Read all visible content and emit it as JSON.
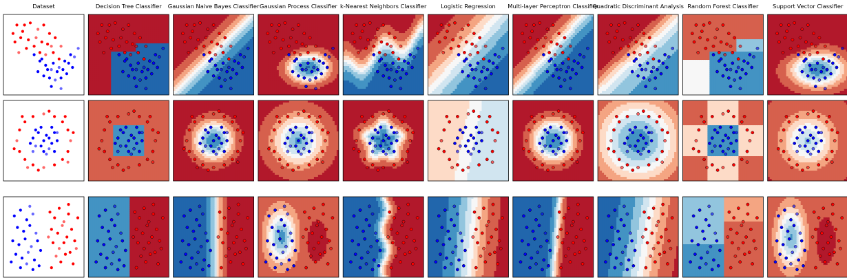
{
  "figure": {
    "columns": [
      "Dataset",
      "Decision Tree Classifier",
      "Gaussian Naive Bayes Classifier",
      "Gaussian Process Classifier",
      "k-Nearest Neighbors Classifier",
      "Logistic Regression",
      "Multi-layer Perceptron Classifier",
      "Quadratic Discriminant Analysis",
      "Random Forest Classifier",
      "Support Vector Classifier"
    ],
    "rows": [
      "moons",
      "circles",
      "linearly separable"
    ],
    "colors": {
      "class_0": "#ff0000",
      "class_1": "#0000ff",
      "map_red_dark": "#b2182b",
      "map_red": "#d6604d",
      "map_red_light": "#f4a582",
      "map_red_pale": "#fddbc7",
      "map_white": "#f7f7f7",
      "map_blue_pale": "#d1e5f0",
      "map_blue_light": "#92c5de",
      "map_blue": "#4393c3",
      "map_blue_dark": "#2166ac"
    }
  },
  "chart_data": {
    "type": "scatter",
    "description_source": "classifier comparison grid: 3 datasets x 9 classifiers, points coloured by class over decision-function background",
    "datasets": [
      {
        "name": "moons",
        "points": [
          [
            -0.9,
            1.9,
            0
          ],
          [
            -0.6,
            1.6,
            0
          ],
          [
            -0.2,
            2.0,
            0
          ],
          [
            0.2,
            1.7,
            0
          ],
          [
            0.5,
            1.9,
            0
          ],
          [
            0.8,
            1.5,
            0
          ],
          [
            1.1,
            1.3,
            0
          ],
          [
            1.4,
            0.9,
            0
          ],
          [
            -1.0,
            1.1,
            0
          ],
          [
            -0.7,
            1.3,
            0
          ],
          [
            -0.3,
            1.2,
            0
          ],
          [
            0.1,
            1.3,
            0
          ],
          [
            0.4,
            1.1,
            0
          ],
          [
            0.7,
            1.0,
            0
          ],
          [
            1.0,
            0.6,
            0
          ],
          [
            -0.8,
            0.6,
            0
          ],
          [
            -0.4,
            0.8,
            0
          ],
          [
            0.0,
            0.9,
            0
          ],
          [
            0.3,
            0.6,
            0
          ],
          [
            0.6,
            0.5,
            0
          ],
          [
            1.3,
            0.3,
            0
          ],
          [
            -1.1,
            1.5,
            0
          ],
          [
            -0.5,
            1.9,
            0
          ],
          [
            0.9,
            0.9,
            0
          ],
          [
            0.0,
            0.5,
            1
          ],
          [
            0.3,
            0.2,
            1
          ],
          [
            0.6,
            0.0,
            1
          ],
          [
            0.9,
            -0.2,
            1
          ],
          [
            1.2,
            -0.3,
            1
          ],
          [
            1.5,
            -0.2,
            1
          ],
          [
            1.8,
            0.1,
            1
          ],
          [
            2.1,
            0.4,
            1
          ],
          [
            0.2,
            -0.3,
            1
          ],
          [
            0.5,
            -0.5,
            1
          ],
          [
            0.8,
            -0.6,
            1
          ],
          [
            1.1,
            -0.7,
            1
          ],
          [
            1.4,
            -0.6,
            1
          ],
          [
            1.7,
            -0.4,
            1
          ],
          [
            2.0,
            -0.1,
            1
          ],
          [
            2.3,
            0.8,
            1
          ],
          [
            0.4,
            0.3,
            1
          ],
          [
            0.7,
            -0.2,
            1
          ],
          [
            1.0,
            0.1,
            1
          ],
          [
            1.3,
            -0.1,
            1
          ],
          [
            1.6,
            0.2,
            1
          ],
          [
            1.9,
            0.5,
            1
          ],
          [
            0.9,
            -1.0,
            1
          ],
          [
            1.4,
            -1.1,
            1
          ]
        ]
      },
      {
        "name": "circles",
        "points": [
          [
            -0.9,
            0.4,
            0
          ],
          [
            -0.7,
            0.7,
            0
          ],
          [
            -0.4,
            0.9,
            0
          ],
          [
            0.0,
            1.0,
            0
          ],
          [
            0.4,
            0.9,
            0
          ],
          [
            0.7,
            0.7,
            0
          ],
          [
            0.9,
            0.4,
            0
          ],
          [
            1.0,
            0.0,
            0
          ],
          [
            0.9,
            -0.4,
            0
          ],
          [
            0.7,
            -0.7,
            0
          ],
          [
            0.4,
            -0.9,
            0
          ],
          [
            0.0,
            -1.0,
            0
          ],
          [
            -0.4,
            -0.9,
            0
          ],
          [
            -0.7,
            -0.7,
            0
          ],
          [
            -0.9,
            -0.4,
            0
          ],
          [
            -1.0,
            0.0,
            0
          ],
          [
            -0.8,
            0.9,
            0
          ],
          [
            0.8,
            0.9,
            0
          ],
          [
            1.1,
            0.3,
            0
          ],
          [
            0.9,
            -0.8,
            0
          ],
          [
            -0.2,
            -1.1,
            0
          ],
          [
            -1.1,
            -0.3,
            0
          ],
          [
            0.2,
            1.1,
            0
          ],
          [
            -0.6,
            -1.0,
            0
          ],
          [
            0.1,
            0.2,
            1
          ],
          [
            -0.2,
            0.3,
            1
          ],
          [
            0.3,
            -0.1,
            1
          ],
          [
            -0.3,
            -0.2,
            1
          ],
          [
            0.0,
            -0.4,
            1
          ],
          [
            0.4,
            0.3,
            1
          ],
          [
            -0.4,
            0.1,
            1
          ],
          [
            0.2,
            -0.3,
            1
          ],
          [
            -0.1,
            0.5,
            1
          ],
          [
            0.5,
            0.0,
            1
          ],
          [
            -0.5,
            -0.1,
            1
          ],
          [
            0.1,
            -0.5,
            1
          ],
          [
            0.3,
            0.5,
            1
          ],
          [
            -0.3,
            0.4,
            1
          ],
          [
            0.4,
            -0.4,
            1
          ],
          [
            -0.4,
            -0.4,
            1
          ],
          [
            0.0,
            0.0,
            1
          ],
          [
            0.2,
            0.1,
            1
          ],
          [
            -0.1,
            -0.2,
            1
          ],
          [
            0.5,
            0.3,
            1
          ]
        ]
      },
      {
        "name": "linearly separable",
        "points": [
          [
            0.3,
            2.5,
            0
          ],
          [
            0.6,
            2.2,
            0
          ],
          [
            0.9,
            2.7,
            0
          ],
          [
            1.2,
            2.0,
            0
          ],
          [
            1.5,
            2.4,
            0
          ],
          [
            0.4,
            1.6,
            0
          ],
          [
            0.8,
            1.4,
            0
          ],
          [
            1.1,
            1.8,
            0
          ],
          [
            1.4,
            1.2,
            0
          ],
          [
            1.7,
            1.6,
            0
          ],
          [
            0.5,
            0.9,
            0
          ],
          [
            0.9,
            0.6,
            0
          ],
          [
            1.2,
            0.9,
            0
          ],
          [
            1.6,
            0.4,
            0
          ],
          [
            1.9,
            1.0,
            0
          ],
          [
            0.7,
            0.2,
            0
          ],
          [
            1.0,
            -0.1,
            0
          ],
          [
            1.3,
            0.3,
            0
          ],
          [
            1.8,
            -0.2,
            0
          ],
          [
            2.0,
            0.6,
            0
          ],
          [
            0.4,
            -0.4,
            0
          ],
          [
            1.5,
            2.9,
            0
          ],
          [
            2.1,
            2.2,
            0
          ],
          [
            0.2,
            1.2,
            0
          ],
          [
            -2.0,
            2.3,
            1
          ],
          [
            -1.6,
            2.6,
            1
          ],
          [
            -1.2,
            2.1,
            1
          ],
          [
            -0.8,
            2.4,
            1
          ],
          [
            -1.8,
            1.7,
            1
          ],
          [
            -1.4,
            1.5,
            1
          ],
          [
            -1.0,
            1.8,
            1
          ],
          [
            -0.6,
            1.4,
            1
          ],
          [
            -2.1,
            1.0,
            1
          ],
          [
            -1.7,
            0.8,
            1
          ],
          [
            -1.3,
            1.1,
            1
          ],
          [
            -0.9,
            0.7,
            1
          ],
          [
            -0.5,
            1.0,
            1
          ],
          [
            -1.9,
            0.3,
            1
          ],
          [
            -1.5,
            0.1,
            1
          ],
          [
            -1.1,
            0.4,
            1
          ],
          [
            -0.7,
            0.0,
            1
          ],
          [
            -0.3,
            0.5,
            1
          ],
          [
            -1.6,
            -0.4,
            1
          ],
          [
            -1.2,
            -0.2,
            1
          ],
          [
            -0.8,
            -0.5,
            1
          ],
          [
            -2.2,
            -0.1,
            1
          ],
          [
            -0.4,
            -0.3,
            1
          ],
          [
            -1.0,
            2.8,
            1
          ]
        ]
      }
    ]
  }
}
